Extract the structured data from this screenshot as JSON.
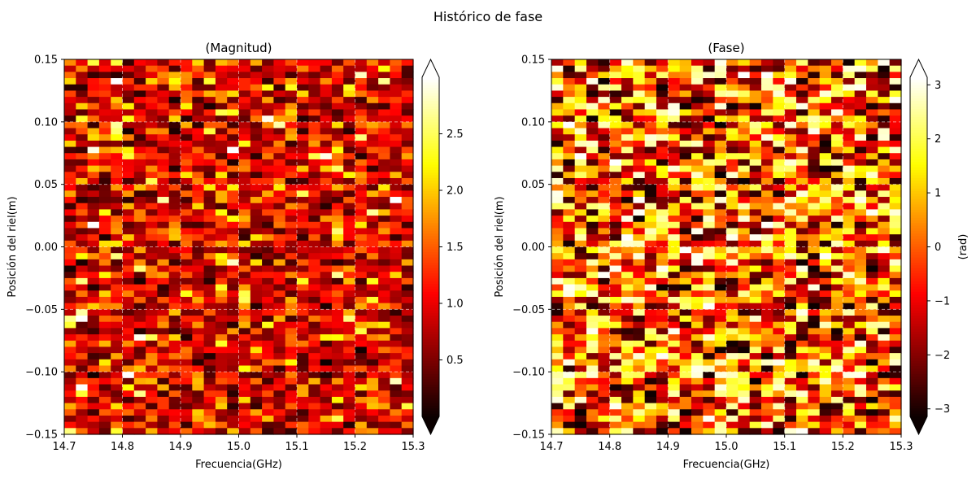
{
  "figure": {
    "suptitle": "Histórico de fase"
  },
  "chart_data": [
    {
      "type": "heatmap",
      "title": "(Magnitud)",
      "xlabel": "Frecuencia(GHz)",
      "ylabel": "Posición del riel(m)",
      "xlim": [
        14.7,
        15.3
      ],
      "ylim": [
        -0.15,
        0.15
      ],
      "x_ticks": [
        "14.7",
        "14.8",
        "14.9",
        "15.0",
        "15.1",
        "15.2",
        "15.3"
      ],
      "y_ticks": [
        "−0.15",
        "−0.10",
        "−0.05",
        "0.00",
        "0.05",
        "0.10",
        "0.15"
      ],
      "grid": true,
      "colormap": "hot",
      "vmin": 0.0,
      "vmax": 3.0,
      "colorbar": {
        "label": "",
        "extend": "both",
        "ticks": [
          "0.5",
          "1.0",
          "1.5",
          "2.0",
          "2.5"
        ]
      },
      "n_freq": 30,
      "n_pos": 60,
      "cell_values_note": "noise-like random magnitude per cell",
      "seed": 7,
      "distribution": "magnitude"
    },
    {
      "type": "heatmap",
      "title": "(Fase)",
      "xlabel": "Frecuencia(GHz)",
      "ylabel": "Posición del riel(m)",
      "xlim": [
        14.7,
        15.3
      ],
      "ylim": [
        -0.15,
        0.15
      ],
      "x_ticks": [
        "14.7",
        "14.8",
        "14.9",
        "15.0",
        "15.1",
        "15.2",
        "15.3"
      ],
      "y_ticks": [
        "−0.15",
        "−0.10",
        "−0.05",
        "0.00",
        "0.05",
        "0.10",
        "0.15"
      ],
      "grid": true,
      "colormap": "hot",
      "vmin": -3.14,
      "vmax": 3.14,
      "colorbar": {
        "label": "(rad)",
        "extend": "both",
        "ticks": [
          "−3",
          "−2",
          "−1",
          "0",
          "1",
          "2",
          "3"
        ]
      },
      "n_freq": 30,
      "n_pos": 60,
      "cell_values_note": "noise-like random phase per cell",
      "seed": 13,
      "distribution": "phase"
    }
  ]
}
